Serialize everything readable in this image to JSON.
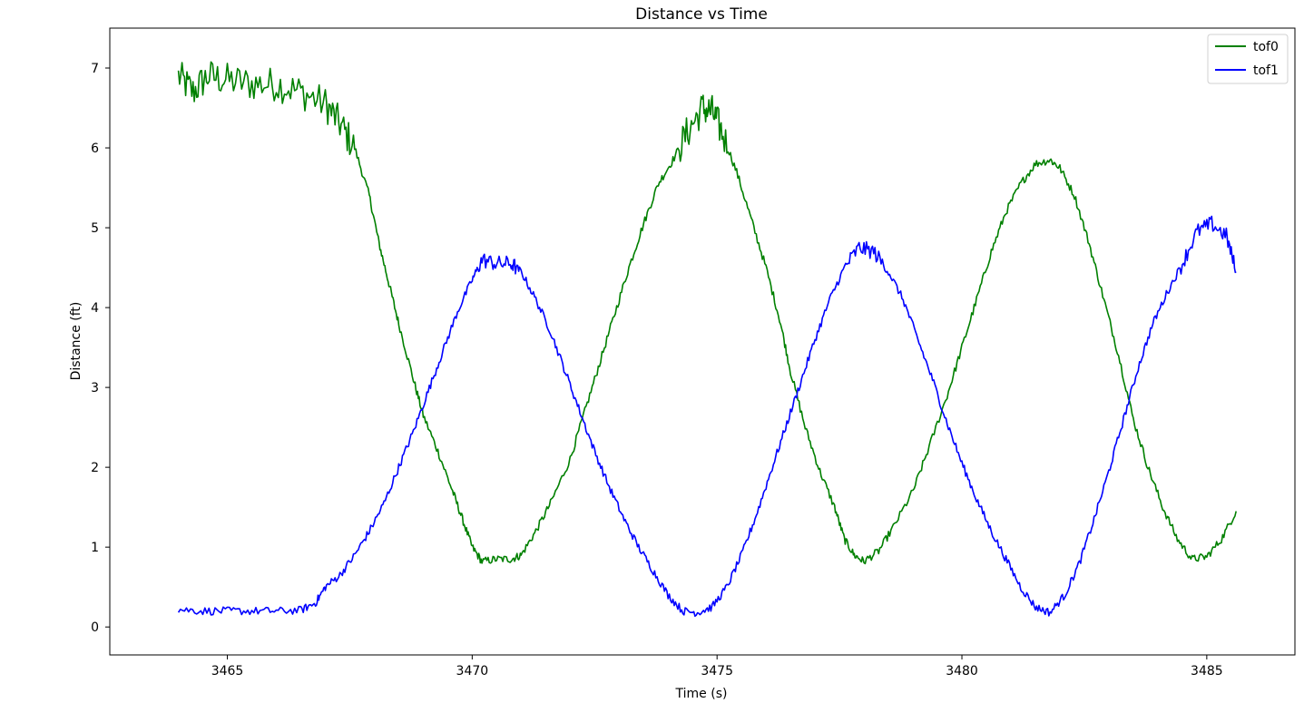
{
  "chart_data": {
    "type": "line",
    "title": "Distance vs Time",
    "xlabel": "Time (s)",
    "ylabel": "Distance (ft)",
    "xlim": [
      3462.6,
      3486.8
    ],
    "ylim": [
      -0.35,
      7.5
    ],
    "xticks": [
      3465,
      3470,
      3475,
      3480,
      3485
    ],
    "yticks": [
      0,
      1,
      2,
      3,
      4,
      5,
      6,
      7
    ],
    "grid": false,
    "legend": "top-right",
    "series": [
      {
        "name": "tof0",
        "color": "#008000",
        "points": [
          [
            3464.0,
            6.9
          ],
          [
            3464.3,
            6.7
          ],
          [
            3464.6,
            6.9
          ],
          [
            3465.0,
            6.85
          ],
          [
            3465.5,
            6.8
          ],
          [
            3466.0,
            6.8
          ],
          [
            3466.5,
            6.7
          ],
          [
            3467.0,
            6.55
          ],
          [
            3467.3,
            6.3
          ],
          [
            3467.6,
            6.0
          ],
          [
            3467.9,
            5.4
          ],
          [
            3468.1,
            4.8
          ],
          [
            3468.3,
            4.3
          ],
          [
            3468.5,
            3.8
          ],
          [
            3468.8,
            3.1
          ],
          [
            3469.0,
            2.65
          ],
          [
            3469.3,
            2.2
          ],
          [
            3469.6,
            1.7
          ],
          [
            3469.8,
            1.35
          ],
          [
            3470.0,
            1.0
          ],
          [
            3470.2,
            0.82
          ],
          [
            3470.5,
            0.85
          ],
          [
            3470.8,
            0.85
          ],
          [
            3471.0,
            0.9
          ],
          [
            3471.3,
            1.2
          ],
          [
            3471.6,
            1.55
          ],
          [
            3472.0,
            2.1
          ],
          [
            3472.3,
            2.7
          ],
          [
            3472.6,
            3.3
          ],
          [
            3472.9,
            3.9
          ],
          [
            3473.2,
            4.5
          ],
          [
            3473.5,
            5.05
          ],
          [
            3473.8,
            5.55
          ],
          [
            3474.1,
            5.85
          ],
          [
            3474.4,
            6.2
          ],
          [
            3474.7,
            6.5
          ],
          [
            3474.9,
            6.45
          ],
          [
            3475.1,
            6.2
          ],
          [
            3475.4,
            5.7
          ],
          [
            3475.7,
            5.1
          ],
          [
            3476.0,
            4.5
          ],
          [
            3476.3,
            3.8
          ],
          [
            3476.5,
            3.2
          ],
          [
            3476.8,
            2.5
          ],
          [
            3477.1,
            1.95
          ],
          [
            3477.4,
            1.5
          ],
          [
            3477.6,
            1.1
          ],
          [
            3477.8,
            0.9
          ],
          [
            3478.0,
            0.82
          ],
          [
            3478.3,
            0.95
          ],
          [
            3478.6,
            1.25
          ],
          [
            3479.0,
            1.7
          ],
          [
            3479.3,
            2.2
          ],
          [
            3479.7,
            2.9
          ],
          [
            3480.0,
            3.5
          ],
          [
            3480.3,
            4.1
          ],
          [
            3480.6,
            4.7
          ],
          [
            3480.9,
            5.2
          ],
          [
            3481.2,
            5.55
          ],
          [
            3481.5,
            5.8
          ],
          [
            3481.8,
            5.85
          ],
          [
            3482.0,
            5.75
          ],
          [
            3482.3,
            5.4
          ],
          [
            3482.6,
            4.8
          ],
          [
            3482.9,
            4.1
          ],
          [
            3483.2,
            3.4
          ],
          [
            3483.5,
            2.6
          ],
          [
            3483.8,
            2.0
          ],
          [
            3484.1,
            1.5
          ],
          [
            3484.4,
            1.1
          ],
          [
            3484.7,
            0.85
          ],
          [
            3485.0,
            0.88
          ],
          [
            3485.3,
            1.1
          ],
          [
            3485.6,
            1.45
          ]
        ]
      },
      {
        "name": "tof1",
        "color": "#0000ff",
        "points": [
          [
            3464.0,
            0.22
          ],
          [
            3464.5,
            0.2
          ],
          [
            3465.0,
            0.2
          ],
          [
            3465.5,
            0.2
          ],
          [
            3466.0,
            0.2
          ],
          [
            3466.5,
            0.21
          ],
          [
            3466.8,
            0.3
          ],
          [
            3467.0,
            0.5
          ],
          [
            3467.3,
            0.65
          ],
          [
            3467.6,
            0.9
          ],
          [
            3467.9,
            1.2
          ],
          [
            3468.2,
            1.55
          ],
          [
            3468.5,
            2.0
          ],
          [
            3468.8,
            2.45
          ],
          [
            3469.1,
            2.95
          ],
          [
            3469.4,
            3.45
          ],
          [
            3469.7,
            3.95
          ],
          [
            3470.0,
            4.35
          ],
          [
            3470.2,
            4.6
          ],
          [
            3470.5,
            4.55
          ],
          [
            3470.8,
            4.55
          ],
          [
            3471.0,
            4.45
          ],
          [
            3471.3,
            4.1
          ],
          [
            3471.6,
            3.7
          ],
          [
            3471.9,
            3.2
          ],
          [
            3472.2,
            2.7
          ],
          [
            3472.5,
            2.2
          ],
          [
            3472.8,
            1.75
          ],
          [
            3473.1,
            1.35
          ],
          [
            3473.4,
            1.0
          ],
          [
            3473.7,
            0.7
          ],
          [
            3474.0,
            0.4
          ],
          [
            3474.3,
            0.2
          ],
          [
            3474.6,
            0.18
          ],
          [
            3474.9,
            0.25
          ],
          [
            3475.2,
            0.5
          ],
          [
            3475.5,
            0.9
          ],
          [
            3475.8,
            1.4
          ],
          [
            3476.1,
            1.95
          ],
          [
            3476.4,
            2.5
          ],
          [
            3476.7,
            3.05
          ],
          [
            3477.0,
            3.6
          ],
          [
            3477.3,
            4.1
          ],
          [
            3477.6,
            4.5
          ],
          [
            3477.9,
            4.75
          ],
          [
            3478.2,
            4.7
          ],
          [
            3478.5,
            4.45
          ],
          [
            3478.8,
            4.1
          ],
          [
            3479.1,
            3.6
          ],
          [
            3479.4,
            3.1
          ],
          [
            3479.7,
            2.55
          ],
          [
            3480.0,
            2.05
          ],
          [
            3480.3,
            1.6
          ],
          [
            3480.6,
            1.2
          ],
          [
            3480.9,
            0.85
          ],
          [
            3481.2,
            0.5
          ],
          [
            3481.5,
            0.25
          ],
          [
            3481.8,
            0.18
          ],
          [
            3482.1,
            0.4
          ],
          [
            3482.4,
            0.8
          ],
          [
            3482.7,
            1.35
          ],
          [
            3483.0,
            1.95
          ],
          [
            3483.3,
            2.6
          ],
          [
            3483.6,
            3.25
          ],
          [
            3483.9,
            3.8
          ],
          [
            3484.2,
            4.2
          ],
          [
            3484.5,
            4.55
          ],
          [
            3484.8,
            4.95
          ],
          [
            3485.1,
            5.05
          ],
          [
            3485.4,
            4.9
          ],
          [
            3485.6,
            4.45
          ]
        ]
      }
    ]
  }
}
